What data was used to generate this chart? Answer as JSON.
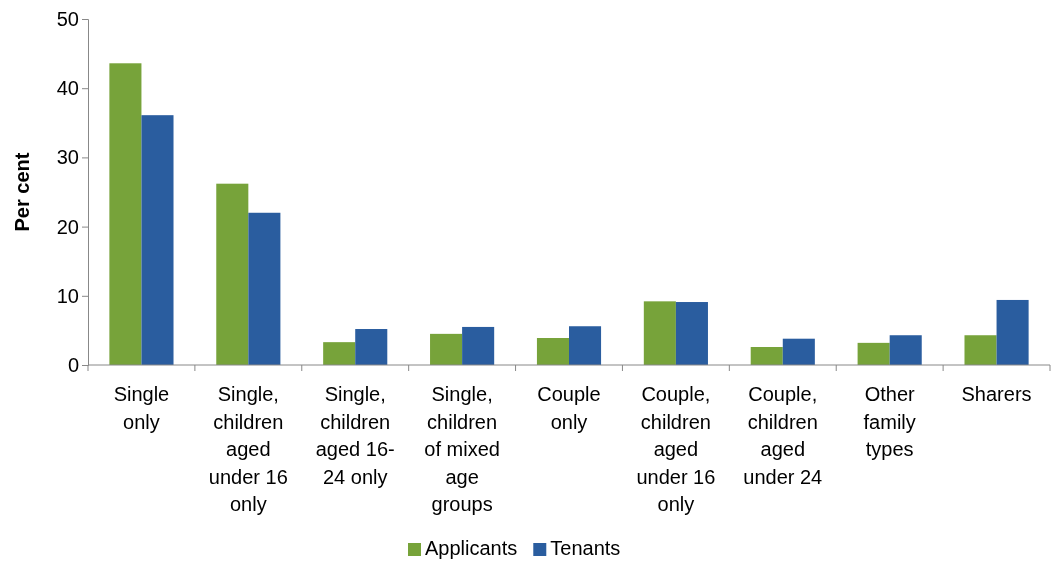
{
  "chart_data": {
    "type": "bar",
    "ylabel": "Per cent",
    "categories": [
      "Single\nonly",
      "Single,\nchildren\naged\nunder 16\nonly",
      "Single,\nchildren\naged 16-\n24 only",
      "Single,\nchildren\nof mixed\nage\ngroups",
      "Couple\nonly",
      "Couple,\nchildren\naged\nunder 16\nonly",
      "Couple,\nchildren\naged\nunder 24",
      "Other\nfamily\ntypes",
      "Sharers"
    ],
    "series": [
      {
        "name": "Applicants",
        "color": "#77a33a",
        "values": [
          43.6,
          26.2,
          3.3,
          4.5,
          3.9,
          9.2,
          2.6,
          3.2,
          4.3
        ]
      },
      {
        "name": "Tenants",
        "color": "#2a5d9f",
        "values": [
          36.1,
          22.0,
          5.2,
          5.5,
          5.6,
          9.1,
          3.8,
          4.3,
          9.4
        ]
      }
    ],
    "ylim": [
      0,
      50
    ],
    "yticks": [
      0,
      10,
      20,
      30,
      40,
      50
    ],
    "grid": false,
    "legend": "bottom"
  }
}
